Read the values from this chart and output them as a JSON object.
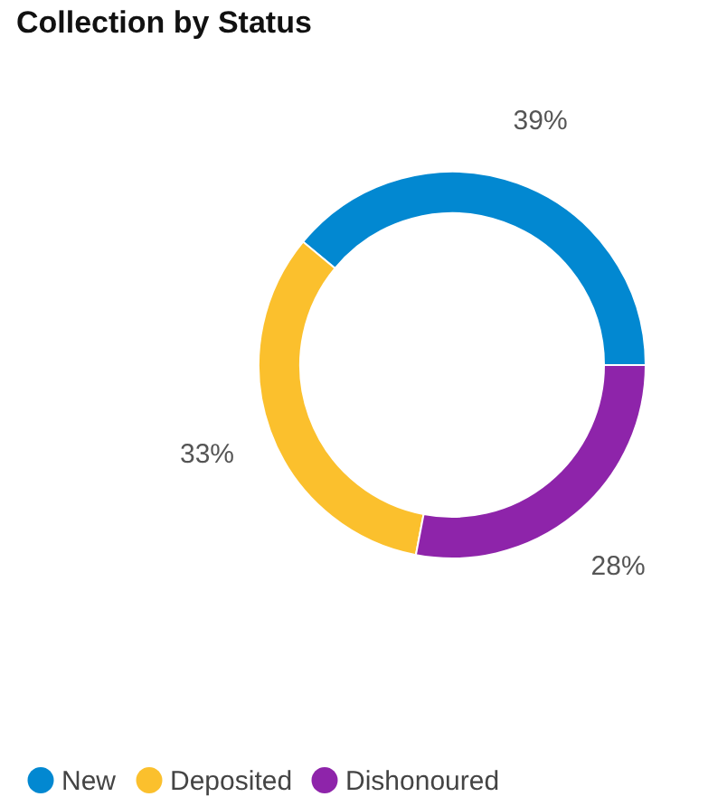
{
  "chart_data": {
    "type": "donut",
    "title": "Collection by Status",
    "categories": [
      "New",
      "Deposited",
      "Dishonoured"
    ],
    "values": [
      39,
      33,
      28
    ],
    "colors": [
      "#0288d1",
      "#fbc02d",
      "#8e24aa"
    ],
    "value_labels": [
      "39%",
      "33%",
      "28%"
    ],
    "legend": "bottom left"
  }
}
